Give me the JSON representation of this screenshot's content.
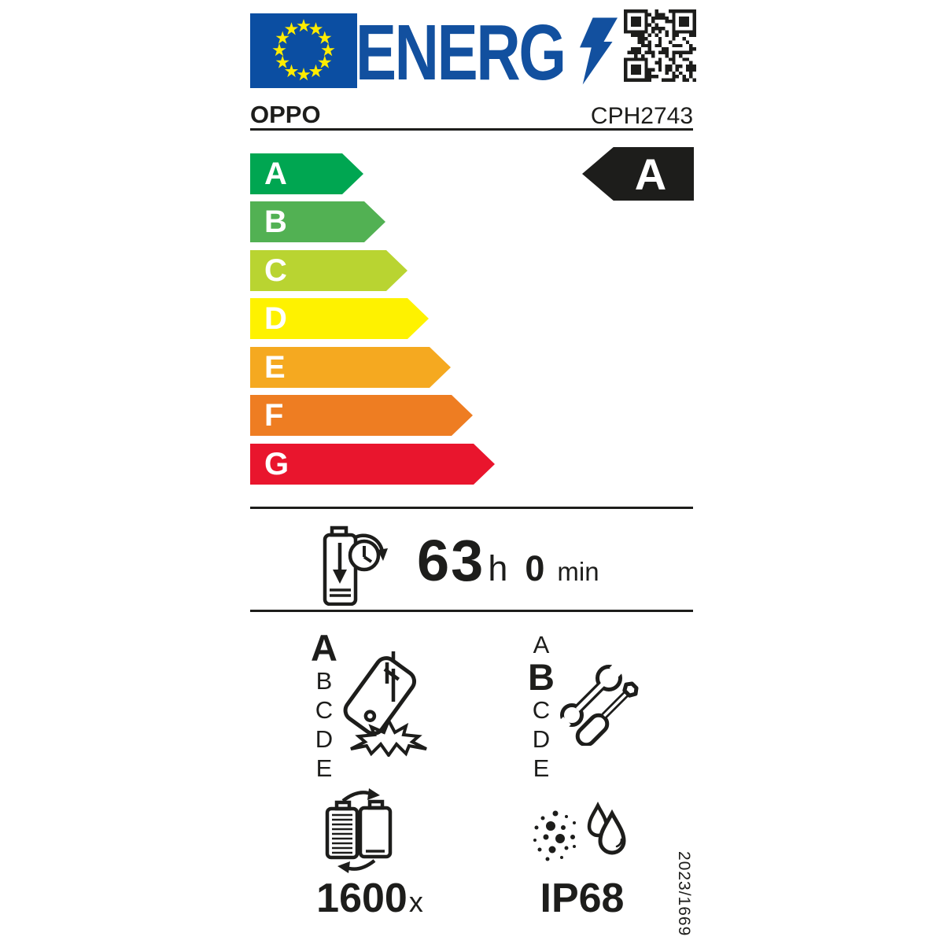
{
  "colors": {
    "flag_blue": "#0B4EA2",
    "logo_blue": "#12509F",
    "star_yellow": "#FFEC00",
    "ink": "#1D1D1B"
  },
  "header": {
    "logo_text": "ENERG"
  },
  "product": {
    "brand": "OPPO",
    "model": "CPH2743"
  },
  "energy_scale": {
    "rated_class": "A",
    "classes": [
      {
        "label": "A",
        "color": "#00A651"
      },
      {
        "label": "B",
        "color": "#52B153"
      },
      {
        "label": "C",
        "color": "#B9D431"
      },
      {
        "label": "D",
        "color": "#FEF200"
      },
      {
        "label": "E",
        "color": "#F5A920"
      },
      {
        "label": "F",
        "color": "#EE7D22"
      },
      {
        "label": "G",
        "color": "#E9152D"
      }
    ]
  },
  "battery_endurance": {
    "hours": "63",
    "hours_unit": "h",
    "minutes": "0",
    "minutes_unit": "min"
  },
  "drop_resistance": {
    "rated_class": "A",
    "scale": [
      "A",
      "B",
      "C",
      "D",
      "E"
    ]
  },
  "repairability": {
    "rated_class": "B",
    "scale": [
      "A",
      "B",
      "C",
      "D",
      "E"
    ]
  },
  "battery_cycles": {
    "value": "1600",
    "unit": "x"
  },
  "ingress_protection": {
    "rating": "IP68"
  },
  "regulation_number": "2023/1669"
}
